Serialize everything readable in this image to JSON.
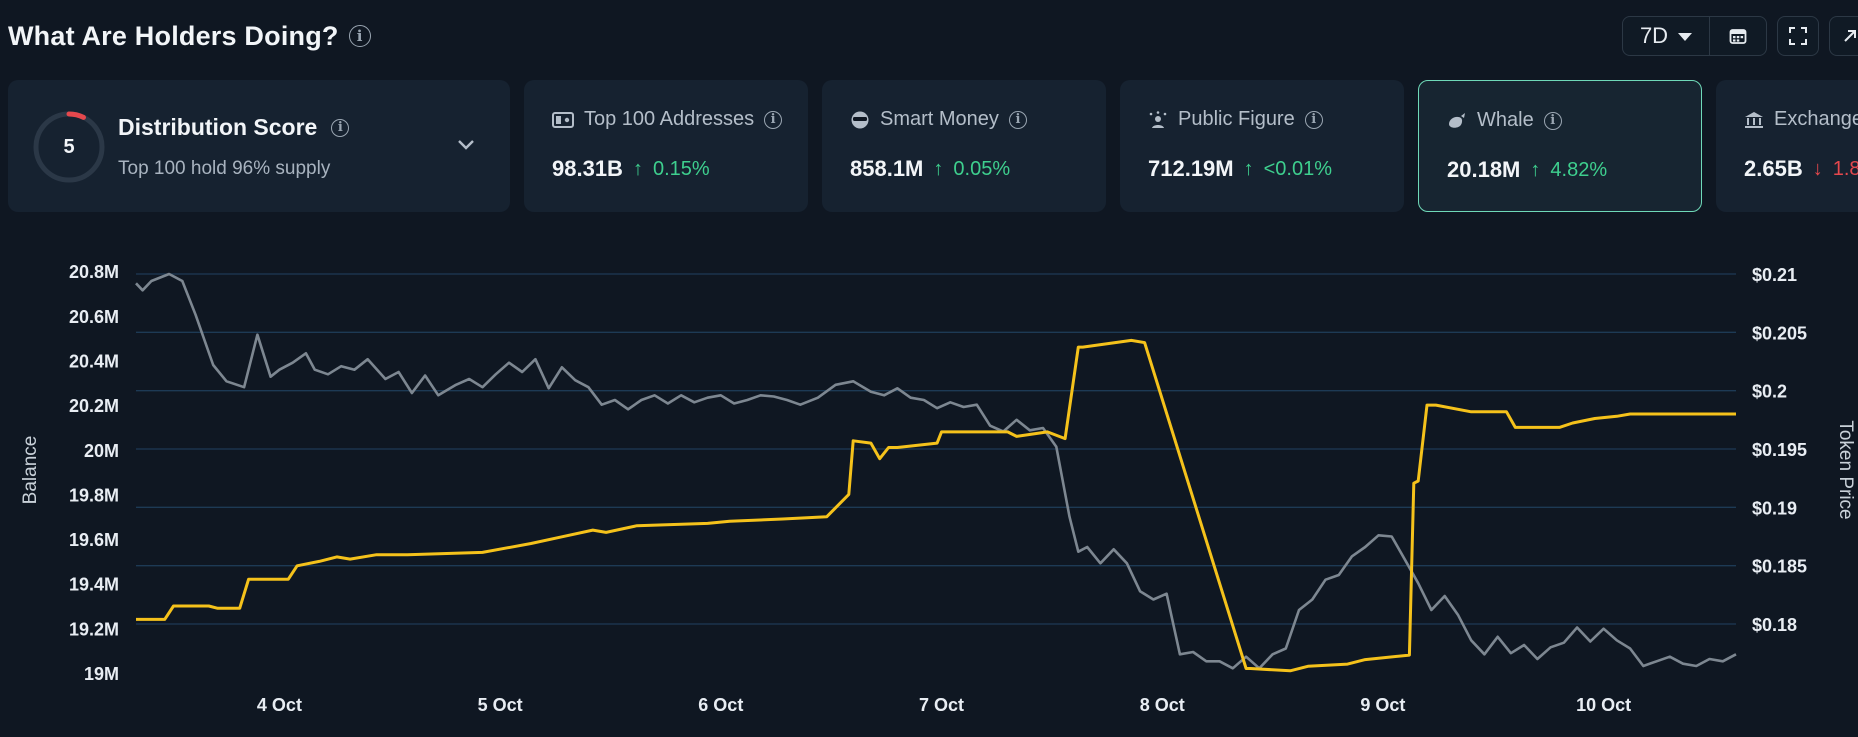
{
  "header": {
    "title": "What Are Holders Doing?",
    "range": "7D"
  },
  "cards": {
    "distribution": {
      "score": "5",
      "label": "Distribution Score",
      "subtitle": "Top 100 hold 96% supply"
    },
    "top100": {
      "label": "Top 100 Addresses",
      "value": "98.31B",
      "change": "0.15%",
      "direction": "up",
      "icon": "wallet-icon"
    },
    "smart": {
      "label": "Smart Money",
      "value": "858.1M",
      "change": "0.05%",
      "direction": "up",
      "icon": "sunglasses-icon"
    },
    "figure": {
      "label": "Public Figure",
      "value": "712.19M",
      "change": "<0.01%",
      "direction": "up",
      "icon": "star-person-icon"
    },
    "whale": {
      "label": "Whale",
      "value": "20.18M",
      "change": "4.82%",
      "direction": "up",
      "icon": "whale-icon",
      "active": true
    },
    "exchange": {
      "label": "Exchange",
      "value": "2.65B",
      "change": "1.8",
      "direction": "down",
      "icon": "bank-icon"
    }
  },
  "colors": {
    "balance_line": "#f5c21b",
    "price_line": "#7d8791",
    "positive": "#3ecf8e",
    "negative": "#e5484d",
    "active_border": "#6fd9b8"
  },
  "chart_data": {
    "type": "line",
    "xlabel": "",
    "ylabel": "Balance",
    "y2label": "Token Price",
    "xticks": [
      "4 Oct",
      "5 Oct",
      "6 Oct",
      "7 Oct",
      "8 Oct",
      "9 Oct",
      "10 Oct"
    ],
    "yticks": [
      "19M",
      "19.2M",
      "19.4M",
      "19.6M",
      "19.8M",
      "20M",
      "20.2M",
      "20.4M",
      "20.6M",
      "20.8M"
    ],
    "y2ticks": [
      "$0.18",
      "$0.185",
      "$0.19",
      "$0.195",
      "$0.2",
      "$0.205",
      "$0.21"
    ],
    "xlim": [
      3.35,
      10.6
    ],
    "ylim": [
      19,
      20.85
    ],
    "y2lim": [
      0.1758,
      0.2112
    ],
    "grid": true,
    "series": [
      {
        "axis": "left",
        "color": "#f5c21b",
        "x": [
          3.35,
          3.48,
          3.52,
          3.68,
          3.72,
          3.82,
          3.86,
          4.04,
          4.08,
          4.18,
          4.26,
          4.32,
          4.44,
          4.58,
          4.92,
          5.14,
          5.28,
          5.42,
          5.48,
          5.62,
          5.94,
          6.04,
          6.28,
          6.48,
          6.58,
          6.6,
          6.68,
          6.72,
          6.76,
          6.8,
          6.98,
          7.0,
          7.3,
          7.34,
          7.48,
          7.56,
          7.62,
          7.64,
          7.86,
          7.92,
          8.38,
          8.4,
          8.58,
          8.66,
          8.84,
          8.92,
          9.12,
          9.14,
          9.16,
          9.2,
          9.24,
          9.4,
          9.56,
          9.6,
          9.8,
          9.86,
          9.96,
          10.06,
          10.12,
          10.6
        ],
        "values": [
          19.24,
          19.24,
          19.3,
          19.3,
          19.29,
          19.29,
          19.42,
          19.42,
          19.48,
          19.5,
          19.52,
          19.51,
          19.53,
          19.53,
          19.54,
          19.58,
          19.61,
          19.64,
          19.63,
          19.66,
          19.67,
          19.68,
          19.69,
          19.7,
          19.8,
          20.04,
          20.03,
          19.96,
          20.01,
          20.01,
          20.03,
          20.08,
          20.08,
          20.06,
          20.08,
          20.05,
          20.46,
          20.46,
          20.49,
          20.48,
          19.02,
          19.02,
          19.01,
          19.03,
          19.04,
          19.06,
          19.08,
          19.85,
          19.86,
          20.2,
          20.2,
          20.17,
          20.17,
          20.1,
          20.1,
          20.12,
          20.14,
          20.15,
          20.16,
          20.16
        ]
      },
      {
        "axis": "right",
        "color": "#7d8791",
        "x": [
          3.35,
          3.38,
          3.42,
          3.5,
          3.56,
          3.62,
          3.7,
          3.76,
          3.84,
          3.9,
          3.96,
          4.0,
          4.06,
          4.12,
          4.16,
          4.22,
          4.28,
          4.34,
          4.4,
          4.48,
          4.54,
          4.6,
          4.66,
          4.72,
          4.8,
          4.86,
          4.92,
          4.98,
          5.04,
          5.1,
          5.16,
          5.22,
          5.28,
          5.34,
          5.4,
          5.46,
          5.52,
          5.58,
          5.64,
          5.7,
          5.76,
          5.82,
          5.88,
          5.94,
          6.0,
          6.06,
          6.12,
          6.18,
          6.24,
          6.3,
          6.36,
          6.44,
          6.52,
          6.6,
          6.68,
          6.74,
          6.8,
          6.86,
          6.92,
          6.98,
          7.04,
          7.1,
          7.16,
          7.22,
          7.28,
          7.34,
          7.4,
          7.46,
          7.52,
          7.58,
          7.62,
          7.66,
          7.72,
          7.78,
          7.84,
          7.9,
          7.96,
          8.02,
          8.08,
          8.14,
          8.2,
          8.26,
          8.32,
          8.38,
          8.44,
          8.5,
          8.56,
          8.62,
          8.68,
          8.74,
          8.8,
          8.86,
          8.92,
          8.98,
          9.04,
          9.1,
          9.16,
          9.22,
          9.28,
          9.34,
          9.4,
          9.46,
          9.52,
          9.58,
          9.64,
          9.7,
          9.76,
          9.82,
          9.88,
          9.94,
          10.0,
          10.06,
          10.12,
          10.18,
          10.24,
          10.3,
          10.36,
          10.42,
          10.48,
          10.54,
          10.6
        ],
        "values": [
          0.2092,
          0.2086,
          0.2094,
          0.21,
          0.2094,
          0.2065,
          0.2022,
          0.2008,
          0.2003,
          0.2048,
          0.2012,
          0.2018,
          0.2024,
          0.2032,
          0.2018,
          0.2014,
          0.2021,
          0.2018,
          0.2027,
          0.201,
          0.2016,
          0.1998,
          0.2013,
          0.1996,
          0.2005,
          0.201,
          0.2003,
          0.2014,
          0.2024,
          0.2016,
          0.2027,
          0.2002,
          0.202,
          0.2009,
          0.2003,
          0.1988,
          0.1992,
          0.1984,
          0.1992,
          0.1996,
          0.1989,
          0.1996,
          0.199,
          0.1994,
          0.1996,
          0.1989,
          0.1992,
          0.1996,
          0.1995,
          0.1992,
          0.1988,
          0.1994,
          0.2005,
          0.2008,
          0.1999,
          0.1996,
          0.2002,
          0.1994,
          0.1992,
          0.1985,
          0.199,
          0.1986,
          0.1988,
          0.197,
          0.1965,
          0.1975,
          0.1966,
          0.1968,
          0.1952,
          0.1892,
          0.1862,
          0.1866,
          0.1852,
          0.1864,
          0.1852,
          0.1828,
          0.1821,
          0.1826,
          0.1774,
          0.1776,
          0.1768,
          0.1768,
          0.1762,
          0.1772,
          0.1762,
          0.1774,
          0.1779,
          0.1812,
          0.1821,
          0.1838,
          0.1842,
          0.1858,
          0.1866,
          0.1876,
          0.1875,
          0.1855,
          0.1835,
          0.1812,
          0.1824,
          0.1808,
          0.1786,
          0.1774,
          0.1789,
          0.1775,
          0.1782,
          0.177,
          0.178,
          0.1784,
          0.1797,
          0.1785,
          0.1796,
          0.1786,
          0.1779,
          0.1764,
          0.1768,
          0.1772,
          0.1766,
          0.1764,
          0.177,
          0.1768,
          0.1774
        ]
      }
    ]
  }
}
